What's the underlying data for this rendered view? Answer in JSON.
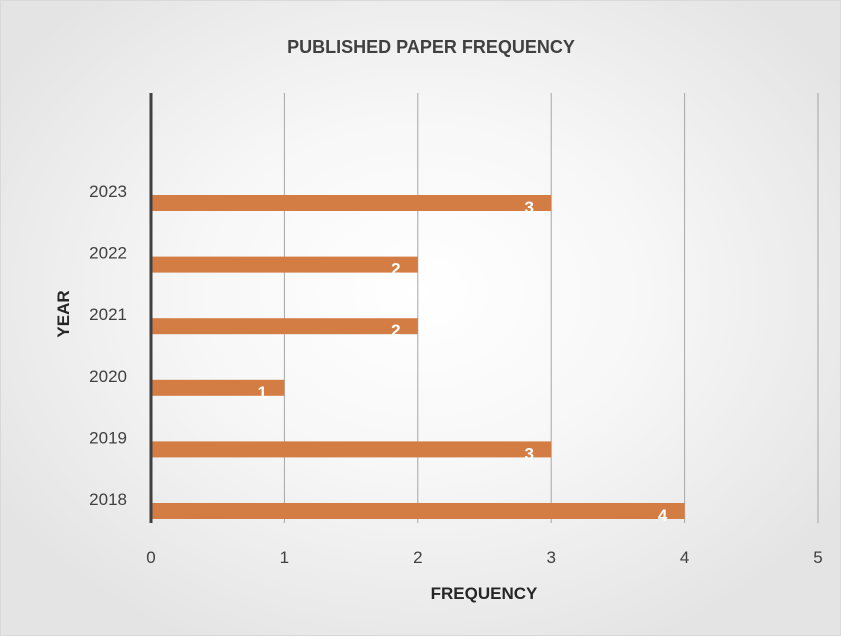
{
  "chart_data": {
    "type": "bar",
    "orientation": "horizontal",
    "title": "PUBLISHED PAPER FREQUENCY",
    "xlabel": "FREQUENCY",
    "ylabel": "YEAR",
    "categories": [
      "2018",
      "2019",
      "2020",
      "2021",
      "2022",
      "2023"
    ],
    "values": [
      4,
      3,
      1,
      2,
      2,
      3
    ],
    "xlim": [
      0,
      5
    ],
    "x_ticks": [
      "0",
      "1",
      "2",
      "3",
      "4",
      "5"
    ],
    "grid": "vertical",
    "data_labels": true,
    "colors": {
      "bar": "#d37d45",
      "grid": "#a6a6a6",
      "axis": "#404040",
      "label": "#ffffff"
    }
  }
}
